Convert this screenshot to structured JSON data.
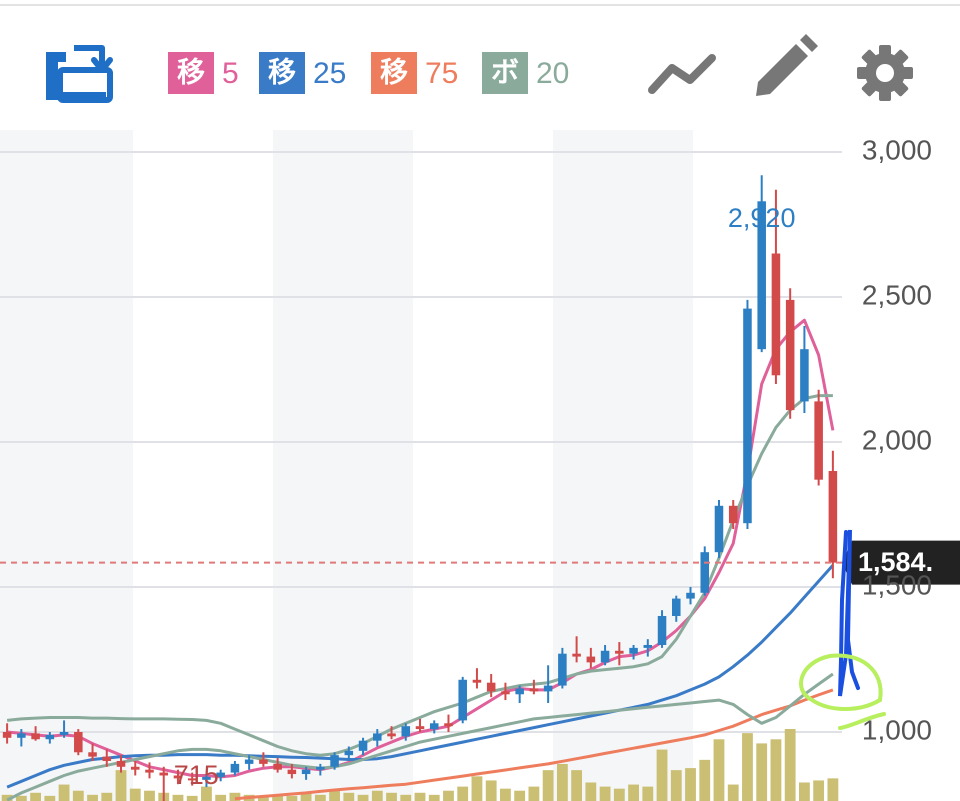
{
  "chart_data": {
    "type": "candlestick",
    "ylim": [
      762,
      3000
    ],
    "yticks": [
      {
        "value": 1000,
        "label": "1,000"
      },
      {
        "value": 1500,
        "label": "1,500"
      },
      {
        "value": 2000,
        "label": "2,000"
      },
      {
        "value": 2500,
        "label": "2,500"
      },
      {
        "value": 3000,
        "label": "3,000"
      }
    ],
    "grid": true,
    "up_color": "#2d7fc4",
    "down_color": "#d34a4a",
    "volume_color": "#cbbf74",
    "current_price": {
      "value": 1584,
      "label": "1,584."
    },
    "high_marker": {
      "value": 2920,
      "label": "2,920"
    },
    "low_marker": 715,
    "ohlc": [
      [
        1000,
        1030,
        960,
        980
      ],
      [
        980,
        1010,
        950,
        995
      ],
      [
        995,
        1020,
        970,
        975
      ],
      [
        975,
        1000,
        960,
        990
      ],
      [
        990,
        1040,
        980,
        1000
      ],
      [
        1000,
        1010,
        920,
        930
      ],
      [
        930,
        960,
        900,
        915
      ],
      [
        915,
        940,
        880,
        900
      ],
      [
        900,
        920,
        860,
        880
      ],
      [
        880,
        900,
        850,
        870
      ],
      [
        870,
        895,
        840,
        860
      ],
      [
        860,
        880,
        715,
        850
      ],
      [
        850,
        870,
        820,
        840
      ],
      [
        840,
        860,
        815,
        835
      ],
      [
        835,
        855,
        810,
        845
      ],
      [
        845,
        870,
        830,
        860
      ],
      [
        860,
        900,
        850,
        890
      ],
      [
        890,
        920,
        870,
        905
      ],
      [
        905,
        930,
        880,
        890
      ],
      [
        890,
        910,
        860,
        870
      ],
      [
        870,
        890,
        840,
        855
      ],
      [
        855,
        880,
        835,
        870
      ],
      [
        870,
        890,
        850,
        880
      ],
      [
        880,
        930,
        870,
        920
      ],
      [
        920,
        950,
        900,
        935
      ],
      [
        935,
        980,
        920,
        970
      ],
      [
        970,
        1010,
        950,
        995
      ],
      [
        995,
        1020,
        975,
        985
      ],
      [
        985,
        1030,
        970,
        1020
      ],
      [
        1020,
        1045,
        1000,
        1010
      ],
      [
        1010,
        1040,
        995,
        1030
      ],
      [
        1030,
        1060,
        1000,
        1020
      ],
      [
        1040,
        1190,
        1030,
        1180
      ],
      [
        1180,
        1220,
        1150,
        1170
      ],
      [
        1170,
        1200,
        1120,
        1140
      ],
      [
        1140,
        1170,
        1110,
        1130
      ],
      [
        1130,
        1160,
        1100,
        1150
      ],
      [
        1150,
        1180,
        1130,
        1140
      ],
      [
        1140,
        1230,
        1100,
        1160
      ],
      [
        1160,
        1290,
        1150,
        1270
      ],
      [
        1270,
        1330,
        1240,
        1260
      ],
      [
        1260,
        1290,
        1220,
        1240
      ],
      [
        1240,
        1300,
        1230,
        1280
      ],
      [
        1280,
        1310,
        1230,
        1270
      ],
      [
        1270,
        1300,
        1250,
        1290
      ],
      [
        1290,
        1320,
        1260,
        1300
      ],
      [
        1300,
        1420,
        1290,
        1400
      ],
      [
        1400,
        1470,
        1380,
        1460
      ],
      [
        1460,
        1500,
        1440,
        1480
      ],
      [
        1480,
        1640,
        1470,
        1620
      ],
      [
        1620,
        1800,
        1600,
        1780
      ],
      [
        1780,
        1800,
        1700,
        1720
      ],
      [
        1720,
        2490,
        1700,
        2460
      ],
      [
        2320,
        2920,
        2310,
        2830
      ],
      [
        2650,
        2870,
        2200,
        2230
      ],
      [
        2490,
        2530,
        2080,
        2110
      ],
      [
        2140,
        2400,
        2100,
        2320
      ],
      [
        2140,
        2180,
        1850,
        1870
      ],
      [
        1900,
        1970,
        1530,
        1584
      ]
    ],
    "volume": [
      6,
      5,
      8,
      5,
      16,
      10,
      6,
      8,
      30,
      12,
      10,
      8,
      6,
      5,
      14,
      6,
      8,
      6,
      5,
      6,
      5,
      8,
      6,
      10,
      8,
      6,
      10,
      8,
      6,
      8,
      6,
      10,
      14,
      24,
      20,
      12,
      10,
      14,
      30,
      36,
      30,
      18,
      14,
      12,
      16,
      14,
      50,
      30,
      32,
      40,
      60,
      16,
      66,
      56,
      60,
      70,
      18,
      20,
      22
    ],
    "series": [
      {
        "badge": "移",
        "name": "5",
        "color": "#e0609a",
        "values": [
          1000,
          995,
          990,
          985,
          990,
          985,
          960,
          940,
          920,
          900,
          880,
          870,
          860,
          850,
          850,
          845,
          850,
          865,
          875,
          880,
          880,
          875,
          870,
          880,
          895,
          920,
          945,
          965,
          985,
          1000,
          1010,
          1020,
          1050,
          1080,
          1110,
          1140,
          1150,
          1145,
          1145,
          1170,
          1200,
          1215,
          1240,
          1260,
          1265,
          1280,
          1310,
          1350,
          1400,
          1460,
          1550,
          1650,
          1900,
          2200,
          2320,
          2380,
          2420,
          2300,
          2040
        ]
      },
      {
        "badge": "移",
        "name": "25",
        "color": "#3a7bc8",
        "values": [
          810,
          830,
          850,
          870,
          885,
          895,
          905,
          910,
          915,
          918,
          920,
          920,
          922,
          922,
          922,
          920,
          920,
          918,
          916,
          915,
          913,
          912,
          910,
          908,
          905,
          905,
          908,
          915,
          925,
          935,
          945,
          955,
          965,
          975,
          985,
          995,
          1005,
          1015,
          1025,
          1035,
          1045,
          1055,
          1065,
          1075,
          1085,
          1095,
          1110,
          1125,
          1145,
          1165,
          1190,
          1225,
          1265,
          1310,
          1360,
          1410,
          1465,
          1520,
          1575
        ]
      },
      {
        "badge": "移",
        "name": "75",
        "color": "#ee7d5e",
        "values": [
          null,
          null,
          null,
          null,
          null,
          null,
          null,
          null,
          null,
          null,
          null,
          null,
          null,
          null,
          null,
          null,
          770,
          774,
          778,
          782,
          786,
          790,
          795,
          800,
          804,
          808,
          812,
          816,
          820,
          827,
          834,
          841,
          848,
          855,
          862,
          869,
          876,
          883,
          890,
          899,
          908,
          917,
          926,
          935,
          944,
          953,
          962,
          971,
          980,
          990,
          1005,
          1020,
          1040,
          1060,
          1075,
          1090,
          1110,
          1128,
          1145
        ]
      },
      {
        "badge": "ボ",
        "name": "20",
        "color": "#8aab9c",
        "values": [
          1040,
          1045,
          1048,
          1050,
          1050,
          1050,
          1048,
          1048,
          1046,
          1045,
          1045,
          1045,
          1044,
          1043,
          1040,
          1030,
          1010,
          990,
          970,
          950,
          935,
          925,
          920,
          925,
          940,
          960,
          985,
          1010,
          1030,
          1050,
          1070,
          1085,
          1100,
          1120,
          1140,
          1150,
          1160,
          1165,
          1170,
          1185,
          1200,
          1210,
          1215,
          1220,
          1225,
          1235,
          1260,
          1320,
          1400,
          1480,
          1600,
          1730,
          1850,
          1960,
          2050,
          2110,
          2150,
          2160,
          2160
        ],
        "lower": [
          765,
          790,
          810,
          830,
          850,
          865,
          875,
          885,
          895,
          905,
          915,
          925,
          935,
          940,
          940,
          935,
          925,
          915,
          905,
          895,
          885,
          880,
          875,
          880,
          890,
          905,
          920,
          935,
          950,
          965,
          975,
          985,
          995,
          1005,
          1015,
          1025,
          1035,
          1045,
          1050,
          1055,
          1060,
          1065,
          1070,
          1075,
          1080,
          1085,
          1090,
          1095,
          1100,
          1105,
          1110,
          1095,
          1060,
          1030,
          1050,
          1090,
          1130,
          1165,
          1200
        ]
      }
    ]
  }
}
